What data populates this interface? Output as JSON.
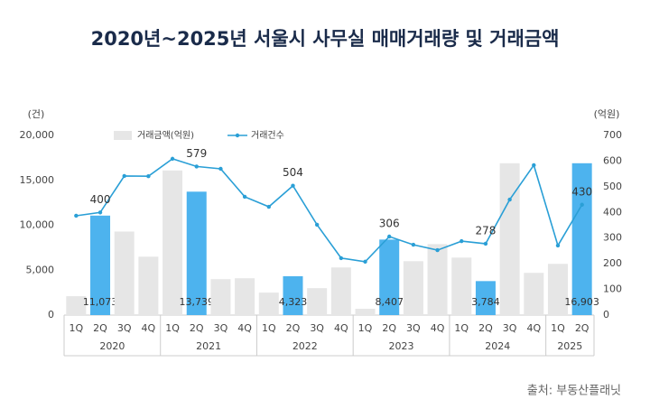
{
  "chart_data": {
    "type": "bar_line",
    "title": "2020년~2025년 서울시 사무실 매매거래량 및 거래금액",
    "source": "출처: 부동산플래닛",
    "y_unit": "(건)",
    "y2_unit": "(억원)",
    "groups": [
      {
        "name": "2020",
        "categories": [
          "1Q",
          "2Q",
          "3Q",
          "4Q"
        ]
      },
      {
        "name": "2021",
        "categories": [
          "1Q",
          "2Q",
          "3Q",
          "4Q"
        ]
      },
      {
        "name": "2022",
        "categories": [
          "1Q",
          "2Q",
          "3Q",
          "4Q"
        ]
      },
      {
        "name": "2023",
        "categories": [
          "1Q",
          "2Q",
          "3Q",
          "4Q"
        ]
      },
      {
        "name": "2024",
        "categories": [
          "1Q",
          "2Q",
          "3Q",
          "4Q"
        ]
      },
      {
        "name": "2025",
        "categories": [
          "1Q",
          "2Q"
        ]
      }
    ],
    "series": [
      {
        "name": "거래금액(억원)",
        "type": "bar",
        "color": "#e6e6e6",
        "colors": [
          "#e6e6e6",
          "#4db3ee",
          "#e6e6e6",
          "#e6e6e6",
          "#e6e6e6",
          "#4db3ee",
          "#e6e6e6",
          "#e6e6e6",
          "#e6e6e6",
          "#4db3ee",
          "#e6e6e6",
          "#e6e6e6",
          "#e6e6e6",
          "#4db3ee",
          "#e6e6e6",
          "#e6e6e6",
          "#e6e6e6",
          "#4db3ee",
          "#e6e6e6",
          "#e6e6e6",
          "#e6e6e6",
          "#4db3ee"
        ],
        "values": [
          2100,
          11073,
          9300,
          6500,
          16100,
          13739,
          4000,
          4100,
          2500,
          4323,
          3000,
          5300,
          700,
          8407,
          6000,
          7900,
          6400,
          3784,
          16900,
          4700,
          5700,
          16903
        ],
        "value_labels": [
          null,
          "11,073",
          null,
          null,
          null,
          "13,739",
          null,
          null,
          null,
          "4,323",
          null,
          null,
          null,
          "8,407",
          null,
          null,
          null,
          "3,784",
          null,
          null,
          null,
          "16,903"
        ]
      },
      {
        "name": "거래건수",
        "type": "line",
        "axis": "y2",
        "color": "#2a9fd6",
        "values": [
          387,
          400,
          542,
          541,
          609,
          579,
          570,
          461,
          422,
          504,
          352,
          222,
          208,
          306,
          274,
          253,
          288,
          278,
          450,
          584,
          271,
          430
        ],
        "value_labels": [
          null,
          "400",
          null,
          null,
          null,
          "579",
          null,
          null,
          null,
          "504",
          null,
          null,
          null,
          "306",
          null,
          null,
          null,
          "278",
          null,
          null,
          null,
          "430"
        ]
      }
    ],
    "ylim": [
      0,
      20000
    ],
    "yticks": [
      0,
      {
        "value": 5000,
        "label": "5,000"
      },
      {
        "value": 10000,
        "label": "10,000"
      },
      {
        "value": 15000,
        "label": "15,000"
      },
      {
        "value": 20000,
        "label": "20,000"
      }
    ],
    "y2lim": [
      0,
      700
    ],
    "y2ticks": [
      0,
      100,
      200,
      300,
      400,
      500,
      600,
      700
    ]
  }
}
